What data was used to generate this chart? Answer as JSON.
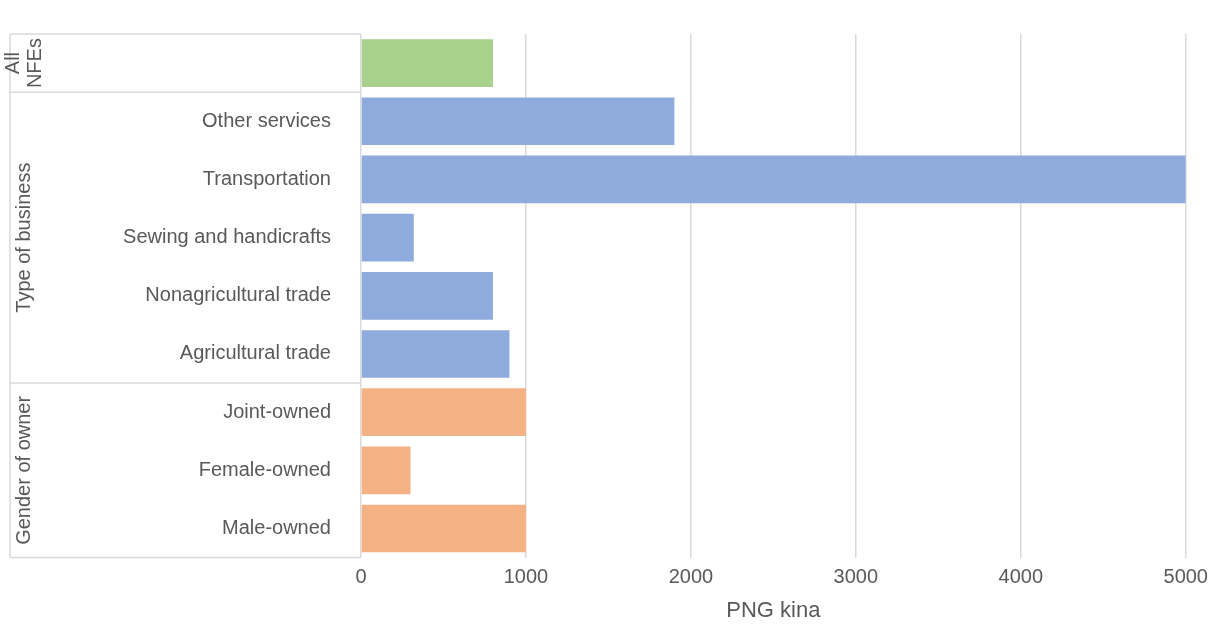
{
  "chart_data": {
    "type": "bar",
    "orientation": "horizontal",
    "categories": [
      null,
      "Other services",
      "Transportation",
      "Sewing and handicrafts",
      "Nonagricultural trade",
      "Agricultural trade",
      "Joint-owned",
      "Female-owned",
      "Male-owned"
    ],
    "values": [
      800,
      1900,
      5000,
      320,
      800,
      900,
      1000,
      300,
      1000
    ],
    "colors": [
      "#a9d18e",
      "#8faadc",
      "#8faadc",
      "#8faadc",
      "#8faadc",
      "#8faadc",
      "#f4b183",
      "#f4b183",
      "#f4b183"
    ],
    "xlabel": "PNG kina",
    "xlim": [
      0,
      5000
    ],
    "xticks": [
      0,
      1000,
      2000,
      3000,
      4000,
      5000
    ],
    "grid": "x",
    "legend": false,
    "annotations": [
      "All NFEs",
      "Type of business",
      "Gender of owner"
    ]
  }
}
